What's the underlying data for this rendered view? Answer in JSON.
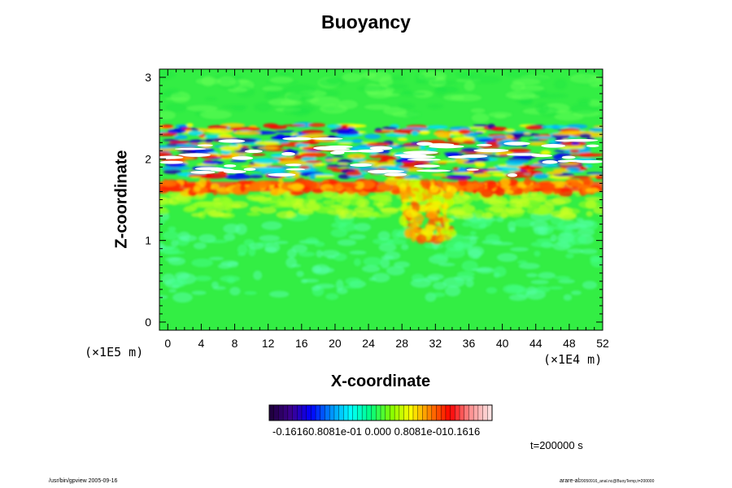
{
  "chart_data": {
    "type": "heatmap",
    "title": "Buoyancy",
    "xlabel": "X-coordinate",
    "ylabel": "Z-coordinate",
    "x_unit": "(×1E4 m)",
    "z_unit": "(×1E5 m)",
    "x_ticks": [
      0,
      4,
      8,
      12,
      16,
      20,
      24,
      28,
      32,
      36,
      40,
      44,
      48,
      52
    ],
    "y_ticks": [
      0,
      1,
      2,
      3
    ],
    "xlim": [
      -1,
      52
    ],
    "ylim": [
      -0.1,
      3.1
    ],
    "colorbar": {
      "range": [
        -0.1616,
        0.1616
      ],
      "tick_labels_text": "-0.16160.8081e-01 0.000 0.8081e-010.1616",
      "colormap": [
        "#200040",
        "#3c0090",
        "#0000ff",
        "#0090ff",
        "#00ffff",
        "#00ff80",
        "#80ff00",
        "#ffff00",
        "#ff8000",
        "#ff0000",
        "#ff9090",
        "#ffe0e0"
      ]
    },
    "field_description": "Near-zero background; alternating positive/negative layers between z=1.7 and z=2.4; strong positive layer near z=1.7 with plume near x=28-34"
  },
  "time_label": "t=200000 s",
  "footer_left": "/usr/bin/gpview 2005-09-16",
  "footer_right_main": "arare-al",
  "footer_right_sub": "20050916_anal.nc@BuoyTemp,t=200000"
}
